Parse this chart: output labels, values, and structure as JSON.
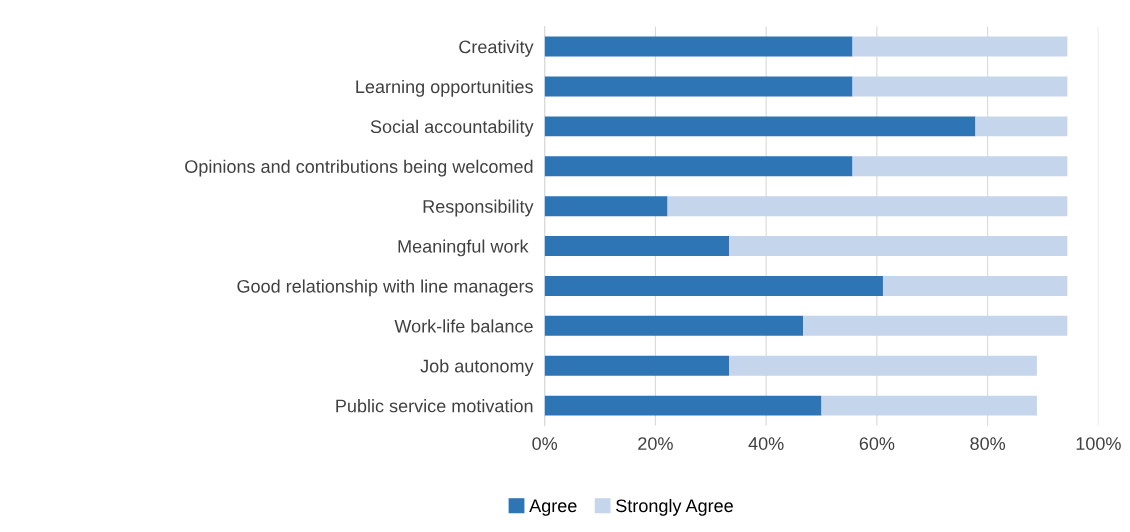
{
  "chart_data": {
    "type": "bar",
    "orientation": "horizontal",
    "stacked": true,
    "categories": [
      "Creativity",
      "Learning opportunities",
      "Social accountability",
      "Opinions and contributions being welcomed",
      "Responsibility",
      "Meaningful work ",
      "Good relationship with line managers",
      "Work-life balance",
      "Job autonomy",
      "Public service motivation"
    ],
    "series": [
      {
        "name": "Agree",
        "color": "#2e75b6",
        "values": [
          55.6,
          55.6,
          77.8,
          55.6,
          22.2,
          33.3,
          61.1,
          46.7,
          33.3,
          50.0
        ]
      },
      {
        "name": "Strongly Agree",
        "color": "#c5d5ec",
        "values": [
          38.8,
          38.8,
          16.6,
          38.8,
          72.2,
          61.1,
          33.3,
          47.7,
          55.6,
          38.9
        ]
      }
    ],
    "xlim": [
      0,
      100
    ],
    "xticks": [
      {
        "value": 0,
        "label": "0%"
      },
      {
        "value": 20,
        "label": "20%"
      },
      {
        "value": 40,
        "label": "40%"
      },
      {
        "value": 60,
        "label": "60%"
      },
      {
        "value": 80,
        "label": "80%"
      },
      {
        "value": 100,
        "label": "100%"
      }
    ],
    "grid": "x",
    "legend": "bottom"
  }
}
